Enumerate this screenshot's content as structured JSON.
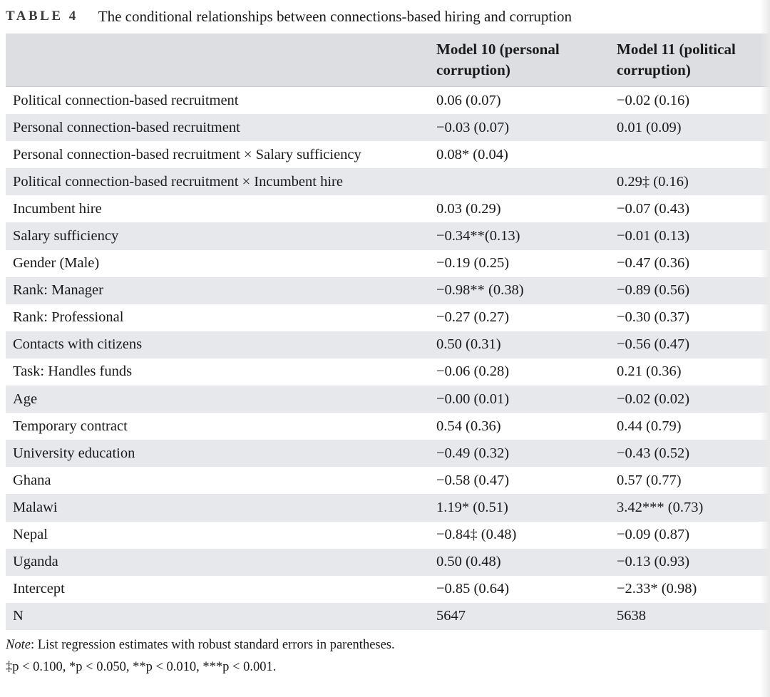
{
  "caption": {
    "label": "TABLE 4",
    "title": "The conditional relationships between connections-based hiring and corruption"
  },
  "table": {
    "headers": [
      "",
      "Model 10 (personal\ncorruption)",
      "Model 11 (political\ncorruption)"
    ],
    "header_lines": {
      "model10_line1": "Model 10 (personal",
      "model10_line2": "corruption)",
      "model11_line1": "Model 11 (political",
      "model11_line2": "corruption)"
    },
    "rows": [
      [
        "Political connection-based recruitment",
        "0.06 (0.07)",
        "−0.02 (0.16)"
      ],
      [
        "Personal connection-based recruitment",
        "−0.03 (0.07)",
        "0.01 (0.09)"
      ],
      [
        "Personal connection-based recruitment × Salary sufficiency",
        "0.08* (0.04)",
        ""
      ],
      [
        "Political connection-based recruitment × Incumbent hire",
        "",
        "0.29‡ (0.16)"
      ],
      [
        "Incumbent hire",
        "0.03 (0.29)",
        "−0.07 (0.43)"
      ],
      [
        "Salary sufficiency",
        "−0.34**(0.13)",
        "−0.01 (0.13)"
      ],
      [
        "Gender (Male)",
        "−0.19 (0.25)",
        "−0.47 (0.36)"
      ],
      [
        "Rank: Manager",
        "−0.98** (0.38)",
        "−0.89 (0.56)"
      ],
      [
        "Rank: Professional",
        "−0.27 (0.27)",
        "−0.30 (0.37)"
      ],
      [
        "Contacts with citizens",
        "0.50 (0.31)",
        "−0.56 (0.47)"
      ],
      [
        "Task: Handles funds",
        "−0.06 (0.28)",
        "0.21 (0.36)"
      ],
      [
        "Age",
        "−0.00 (0.01)",
        "−0.02 (0.02)"
      ],
      [
        "Temporary contract",
        "0.54 (0.36)",
        "0.44 (0.79)"
      ],
      [
        "University education",
        "−0.49 (0.32)",
        "−0.43 (0.52)"
      ],
      [
        "Ghana",
        "−0.58 (0.47)",
        "0.57 (0.77)"
      ],
      [
        "Malawi",
        "1.19* (0.51)",
        "3.42*** (0.73)"
      ],
      [
        "Nepal",
        "−0.84‡ (0.48)",
        "−0.09 (0.87)"
      ],
      [
        "Uganda",
        "0.50 (0.48)",
        "−0.13 (0.93)"
      ],
      [
        "Intercept",
        "−0.85 (0.64)",
        "−2.33* (0.98)"
      ],
      [
        "N",
        "5647",
        "5638"
      ]
    ]
  },
  "notes": {
    "note_label": "Note",
    "note_text": ": List regression estimates with robust standard errors in parentheses.",
    "significance": "‡p < 0.100, *p < 0.050, **p < 0.010, ***p < 0.001."
  },
  "colors": {
    "header_bg": "#dcdee2",
    "stripe_bg": "#e6e8ec"
  }
}
